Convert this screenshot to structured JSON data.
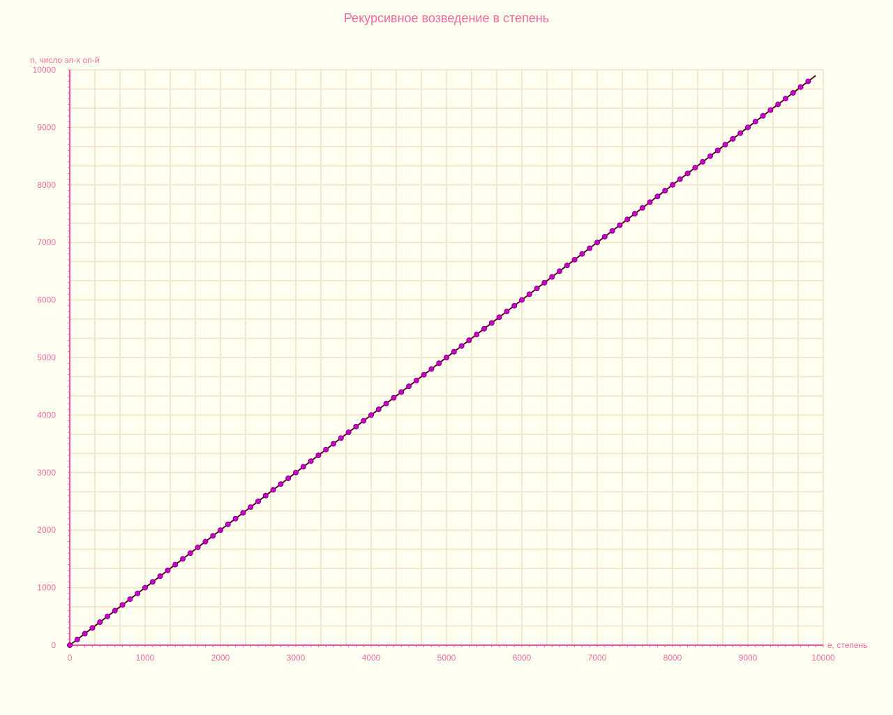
{
  "chart_data": {
    "type": "line",
    "title": "Рекурсивное возведение в степень",
    "xlabel": "e, степень",
    "ylabel": "n, число эл-х оп-й",
    "xlim": [
      0,
      10000
    ],
    "ylim": [
      0,
      10000
    ],
    "x_ticks": [
      0,
      1000,
      2000,
      3000,
      4000,
      5000,
      6000,
      7000,
      8000,
      9000,
      10000
    ],
    "y_ticks": [
      0,
      1000,
      2000,
      3000,
      4000,
      5000,
      6000,
      7000,
      8000,
      9000,
      10000
    ],
    "grid": true,
    "series": [
      {
        "line_color": "#5a0018",
        "marker_color": "#cc00cc",
        "line_start": [
          0,
          0
        ],
        "line_end": [
          9900,
          9900
        ],
        "x": [
          0,
          100,
          200,
          300,
          400,
          500,
          600,
          700,
          800,
          900,
          1000,
          1100,
          1200,
          1300,
          1400,
          1500,
          1600,
          1700,
          1800,
          1900,
          2000,
          2100,
          2200,
          2300,
          2400,
          2500,
          2600,
          2700,
          2800,
          2900,
          3000,
          3100,
          3200,
          3300,
          3400,
          3500,
          3600,
          3700,
          3800,
          3900,
          4000,
          4100,
          4200,
          4300,
          4400,
          4500,
          4600,
          4700,
          4800,
          4900,
          5000,
          5100,
          5200,
          5300,
          5400,
          5500,
          5600,
          5700,
          5800,
          5900,
          6000,
          6100,
          6200,
          6300,
          6400,
          6500,
          6600,
          6700,
          6800,
          6900,
          7000,
          7100,
          7200,
          7300,
          7400,
          7500,
          7600,
          7700,
          7800,
          7900,
          8000,
          8100,
          8200,
          8300,
          8400,
          8500,
          8600,
          8700,
          8800,
          8900,
          9000,
          9100,
          9200,
          9300,
          9400,
          9500,
          9600,
          9700,
          9800
        ],
        "y": [
          0,
          100,
          200,
          300,
          400,
          500,
          600,
          700,
          800,
          900,
          1000,
          1100,
          1200,
          1300,
          1400,
          1500,
          1600,
          1700,
          1800,
          1900,
          2000,
          2100,
          2200,
          2300,
          2400,
          2500,
          2600,
          2700,
          2800,
          2900,
          3000,
          3100,
          3200,
          3300,
          3400,
          3500,
          3600,
          3700,
          3800,
          3900,
          4000,
          4100,
          4200,
          4300,
          4400,
          4500,
          4600,
          4700,
          4800,
          4900,
          5000,
          5100,
          5200,
          5300,
          5400,
          5500,
          5600,
          5700,
          5800,
          5900,
          6000,
          6100,
          6200,
          6300,
          6400,
          6500,
          6600,
          6700,
          6800,
          6900,
          7000,
          7100,
          7200,
          7300,
          7400,
          7500,
          7600,
          7700,
          7800,
          7900,
          8000,
          8100,
          8200,
          8300,
          8400,
          8500,
          8600,
          8700,
          8800,
          8900,
          9000,
          9100,
          9200,
          9300,
          9400,
          9500,
          9600,
          9700,
          9800
        ]
      }
    ]
  },
  "colors": {
    "background": "#fefff0",
    "grid": "#f6e6cc",
    "axis": "#f050a8",
    "text": "#f06aa0"
  }
}
